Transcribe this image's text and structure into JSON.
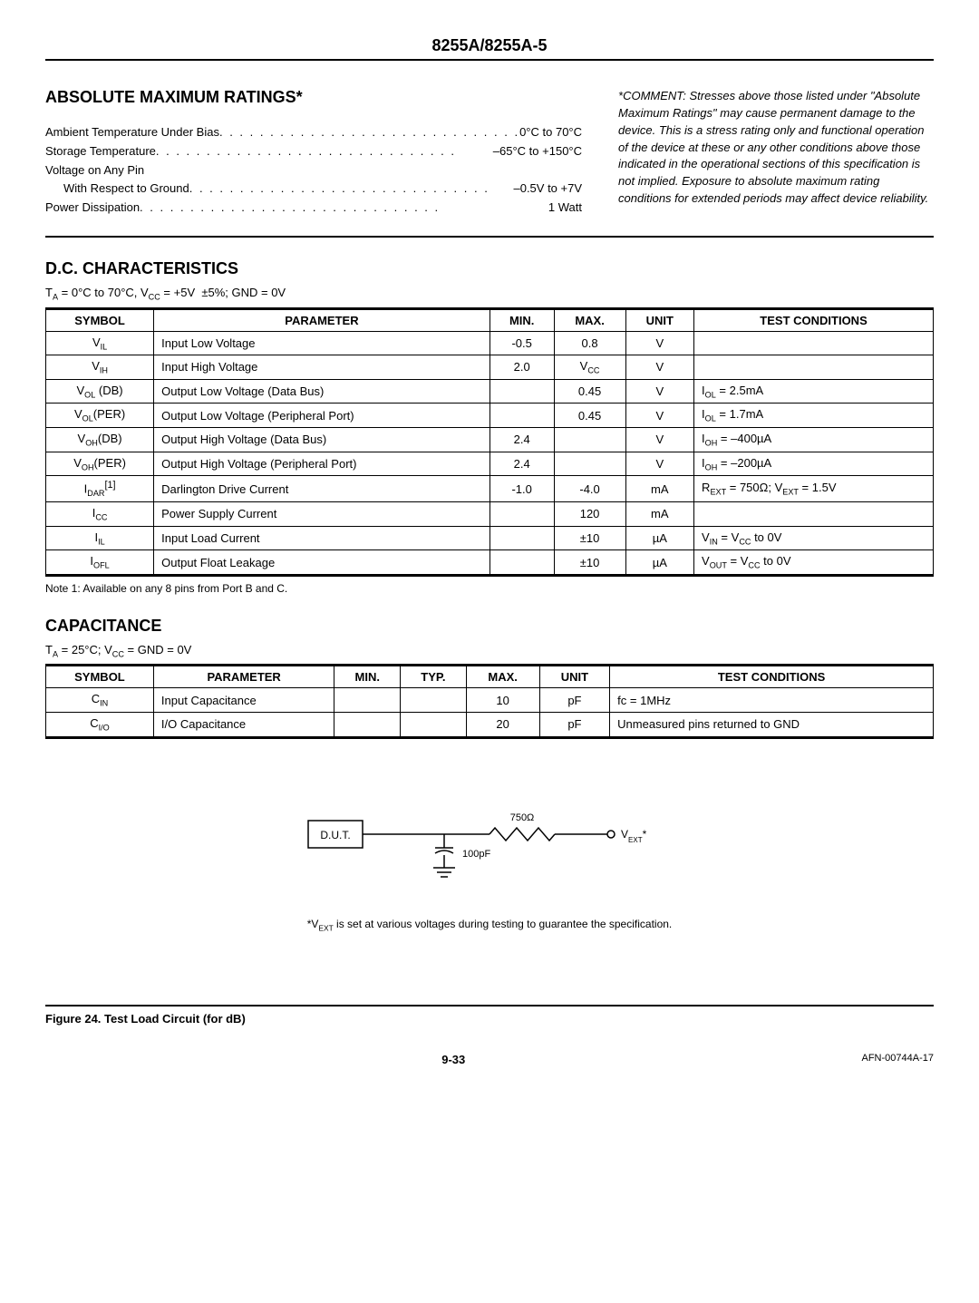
{
  "header": {
    "part_number": "8255A/8255A-5"
  },
  "ratings": {
    "title": "ABSOLUTE MAXIMUM RATINGS*",
    "items": [
      {
        "label": "Ambient Temperature Under Bias",
        "value": "0°C to 70°C",
        "indent": false
      },
      {
        "label": "Storage Temperature",
        "value": "–65°C to +150°C",
        "indent": false
      },
      {
        "label": "Voltage on Any Pin",
        "value": "",
        "indent": false
      },
      {
        "label": "With Respect to Ground",
        "value": "–0.5V to +7V",
        "indent": true
      },
      {
        "label": "Power Dissipation",
        "value": "1 Watt",
        "indent": false
      }
    ],
    "comment": "*COMMENT: Stresses above those listed under \"Absolute Maximum Ratings\" may cause permanent damage to the device. This is a stress rating only and functional operation of the device at these or any other conditions above those indicated in the operational sections of this specification is not implied. Exposure to absolute maximum rating conditions for extended periods may affect device reliability."
  },
  "dc": {
    "title": "D.C. CHARACTERISTICS",
    "cond_html": "T<sub>A</sub> = 0°C to 70°C, V<sub>CC</sub> = +5V &nbsp;±5%; GND = 0V",
    "columns": [
      "SYMBOL",
      "PARAMETER",
      "MIN.",
      "MAX.",
      "UNIT",
      "TEST CONDITIONS"
    ],
    "rows": [
      {
        "sym": "V<sub>IL</sub>",
        "param": "Input Low Voltage",
        "min": "-0.5",
        "max": "0.8",
        "unit": "V",
        "cond": ""
      },
      {
        "sym": "V<sub>IH</sub>",
        "param": "Input High Voltage",
        "min": "2.0",
        "max": "V<sub>CC</sub>",
        "unit": "V",
        "cond": ""
      },
      {
        "sym": "V<sub>OL</sub> (DB)",
        "param": "Output Low Voltage (Data Bus)",
        "min": "",
        "max": "0.45",
        "unit": "V",
        "cond": "I<sub>OL</sub> = 2.5mA"
      },
      {
        "sym": "V<sub>OL</sub>(PER)",
        "param": "Output Low Voltage (Peripheral Port)",
        "min": "",
        "max": "0.45",
        "unit": "V",
        "cond": "I<sub>OL</sub> = 1.7mA"
      },
      {
        "sym": "V<sub>OH</sub>(DB)",
        "param": "Output High Voltage (Data Bus)",
        "min": "2.4",
        "max": "",
        "unit": "V",
        "cond": "I<sub>OH</sub> = –400µA"
      },
      {
        "sym": "V<sub>OH</sub>(PER)",
        "param": "Output High Voltage (Peripheral Port)",
        "min": "2.4",
        "max": "",
        "unit": "V",
        "cond": "I<sub>OH</sub> = –200µA"
      },
      {
        "sym": "I<sub>DAR</sub><sup>[1]</sup>",
        "param": "Darlington Drive Current",
        "min": "-1.0",
        "max": "-4.0",
        "unit": "mA",
        "cond": "R<sub>EXT</sub> = 750Ω; V<sub>EXT</sub> = 1.5V"
      },
      {
        "sym": "I<sub>CC</sub>",
        "param": "Power Supply Current",
        "min": "",
        "max": "120",
        "unit": "mA",
        "cond": ""
      },
      {
        "sym": "I<sub>IL</sub>",
        "param": "Input Load Current",
        "min": "",
        "max": "±10",
        "unit": "µA",
        "cond": "V<sub>IN</sub> = V<sub>CC</sub> to 0V"
      },
      {
        "sym": "I<sub>OFL</sub>",
        "param": "Output Float Leakage",
        "min": "",
        "max": "±10",
        "unit": "µA",
        "cond": "V<sub>OUT</sub> = V<sub>CC</sub> to 0V"
      }
    ],
    "note": "Note 1:   Available on any 8 pins from Port B and C."
  },
  "cap": {
    "title": "CAPACITANCE",
    "cond_html": "T<sub>A</sub>  = 25°C; V<sub>CC</sub> = GND = 0V",
    "columns": [
      "SYMBOL",
      "PARAMETER",
      "MIN.",
      "TYP.",
      "MAX.",
      "UNIT",
      "TEST CONDITIONS"
    ],
    "rows": [
      {
        "sym": "C<sub>IN</sub>",
        "param": "Input Capacitance",
        "min": "",
        "typ": "",
        "max": "10",
        "unit": "pF",
        "cond": "fc = 1MHz"
      },
      {
        "sym": "C<sub>I/O</sub>",
        "param": "I/O Capacitance",
        "min": "",
        "typ": "",
        "max": "20",
        "unit": "pF",
        "cond": "Unmeasured pins returned to GND"
      }
    ]
  },
  "circuit": {
    "dut_label": "D.U.T.",
    "r_label": "750Ω",
    "c_label": "100pF",
    "vext_label": "V<sub>EXT</sub>*",
    "note_html": "*V<sub>EXT</sub> is set at various voltages during testing to guarantee the specification."
  },
  "fig_caption": "Figure 24. Test Load Circuit (for dB)",
  "footer": {
    "page": "9-33",
    "code": "AFN-00744A-17"
  }
}
